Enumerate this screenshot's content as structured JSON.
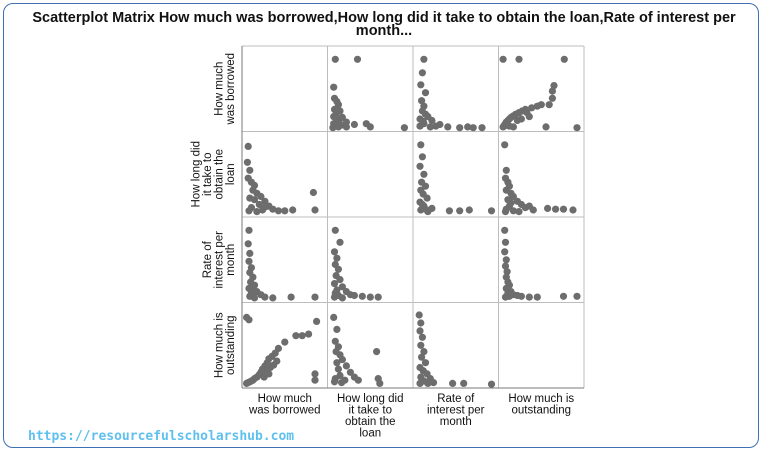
{
  "title": "Scatterplot Matrix How much was borrowed,How long did it take to obtain the loan,Rate of interest per month...",
  "watermark": "https://resourcefulscholarshub.com",
  "chart_data": {
    "type": "scatter-matrix",
    "title": "Scatterplot Matrix How much was borrowed,How long did it take to obtain the loan,Rate of interest per month...",
    "variables": [
      {
        "row_label": [
          "How much",
          "was borrowed"
        ],
        "col_label": [
          "How much",
          "was borrowed"
        ]
      },
      {
        "row_label": [
          "How long did",
          "it take to",
          "obtain the",
          "loan"
        ],
        "col_label": [
          "How long did",
          "it take to",
          "obtain the",
          "loan"
        ]
      },
      {
        "row_label": [
          "Rate of",
          "interest per",
          "month"
        ],
        "col_label": [
          "Rate of",
          "interest per",
          "month"
        ]
      },
      {
        "row_label": [
          "How much  is",
          "outstanding"
        ],
        "col_label": [
          "How much  is",
          "outstanding"
        ]
      }
    ],
    "axis_range": [
      0,
      1
    ],
    "point_color": "#6d6d6d",
    "grid": true,
    "panels": [
      {
        "row": 0,
        "col": 1,
        "points": [
          [
            0.06,
            0.87
          ],
          [
            0.34,
            0.87
          ],
          [
            0.04,
            0.52
          ],
          [
            0.05,
            0.38
          ],
          [
            0.08,
            0.34
          ],
          [
            0.1,
            0.3
          ],
          [
            0.05,
            0.24
          ],
          [
            0.12,
            0.22
          ],
          [
            0.07,
            0.18
          ],
          [
            0.15,
            0.14
          ],
          [
            0.09,
            0.1
          ],
          [
            0.2,
            0.08
          ],
          [
            0.04,
            0.06
          ],
          [
            0.3,
            0.05
          ],
          [
            0.45,
            0.06
          ],
          [
            0.05,
            0.03
          ],
          [
            0.1,
            0.02
          ],
          [
            0.2,
            0.02
          ],
          [
            0.03,
            0.01
          ],
          [
            0.5,
            0.02
          ],
          [
            0.93,
            0.01
          ],
          [
            0.07,
            0.13
          ],
          [
            0.13,
            0.04
          ],
          [
            0.04,
            0.15
          ],
          [
            0.11,
            0.07
          ]
        ]
      },
      {
        "row": 0,
        "col": 2,
        "points": [
          [
            0.1,
            0.87
          ],
          [
            0.08,
            0.7
          ],
          [
            0.06,
            0.55
          ],
          [
            0.12,
            0.45
          ],
          [
            0.07,
            0.35
          ],
          [
            0.1,
            0.28
          ],
          [
            0.08,
            0.22
          ],
          [
            0.15,
            0.15
          ],
          [
            0.05,
            0.12
          ],
          [
            0.2,
            0.1
          ],
          [
            0.1,
            0.06
          ],
          [
            0.3,
            0.05
          ],
          [
            0.05,
            0.03
          ],
          [
            0.18,
            0.02
          ],
          [
            0.4,
            0.02
          ],
          [
            0.55,
            0.01
          ],
          [
            0.65,
            0.02
          ],
          [
            0.72,
            0.01
          ],
          [
            0.83,
            0.01
          ],
          [
            0.12,
            0.18
          ],
          [
            0.25,
            0.03
          ],
          [
            0.09,
            0.09
          ]
        ]
      },
      {
        "row": 0,
        "col": 3,
        "points": [
          [
            0.02,
            0.87
          ],
          [
            0.22,
            0.87
          ],
          [
            0.79,
            0.87
          ],
          [
            0.66,
            0.54
          ],
          [
            0.64,
            0.47
          ],
          [
            0.64,
            0.38
          ],
          [
            0.6,
            0.3
          ],
          [
            0.5,
            0.3
          ],
          [
            0.45,
            0.28
          ],
          [
            0.38,
            0.26
          ],
          [
            0.3,
            0.24
          ],
          [
            0.26,
            0.22
          ],
          [
            0.22,
            0.2
          ],
          [
            0.18,
            0.18
          ],
          [
            0.15,
            0.16
          ],
          [
            0.12,
            0.14
          ],
          [
            0.1,
            0.12
          ],
          [
            0.08,
            0.1
          ],
          [
            0.06,
            0.08
          ],
          [
            0.05,
            0.06
          ],
          [
            0.04,
            0.05
          ],
          [
            0.03,
            0.03
          ],
          [
            0.02,
            0.02
          ],
          [
            0.07,
            0.04
          ],
          [
            0.1,
            0.03
          ],
          [
            0.15,
            0.02
          ],
          [
            0.2,
            0.1
          ],
          [
            0.25,
            0.12
          ],
          [
            0.32,
            0.2
          ],
          [
            0.35,
            0.15
          ],
          [
            0.56,
            0.02
          ],
          [
            0.95,
            0.01
          ]
        ]
      },
      {
        "row": 1,
        "col": 0,
        "points": [
          [
            0.04,
            0.85
          ],
          [
            0.03,
            0.65
          ],
          [
            0.06,
            0.55
          ],
          [
            0.04,
            0.45
          ],
          [
            0.08,
            0.4
          ],
          [
            0.12,
            0.36
          ],
          [
            0.1,
            0.3
          ],
          [
            0.15,
            0.26
          ],
          [
            0.2,
            0.22
          ],
          [
            0.06,
            0.2
          ],
          [
            0.25,
            0.16
          ],
          [
            0.18,
            0.12
          ],
          [
            0.3,
            0.1
          ],
          [
            0.08,
            0.08
          ],
          [
            0.35,
            0.06
          ],
          [
            0.22,
            0.05
          ],
          [
            0.05,
            0.04
          ],
          [
            0.42,
            0.04
          ],
          [
            0.5,
            0.04
          ],
          [
            0.6,
            0.05
          ],
          [
            0.86,
            0.27
          ],
          [
            0.88,
            0.05
          ],
          [
            0.12,
            0.18
          ],
          [
            0.26,
            0.09
          ],
          [
            0.15,
            0.03
          ]
        ]
      },
      {
        "row": 1,
        "col": 2,
        "points": [
          [
            0.06,
            0.87
          ],
          [
            0.08,
            0.72
          ],
          [
            0.05,
            0.6
          ],
          [
            0.1,
            0.5
          ],
          [
            0.07,
            0.4
          ],
          [
            0.12,
            0.35
          ],
          [
            0.06,
            0.3
          ],
          [
            0.09,
            0.25
          ],
          [
            0.14,
            0.2
          ],
          [
            0.05,
            0.15
          ],
          [
            0.1,
            0.1
          ],
          [
            0.2,
            0.07
          ],
          [
            0.06,
            0.05
          ],
          [
            0.15,
            0.03
          ],
          [
            0.42,
            0.04
          ],
          [
            0.55,
            0.04
          ],
          [
            0.67,
            0.05
          ],
          [
            0.95,
            0.04
          ],
          [
            0.08,
            0.12
          ],
          [
            0.12,
            0.06
          ]
        ]
      },
      {
        "row": 1,
        "col": 3,
        "points": [
          [
            0.04,
            0.87
          ],
          [
            0.06,
            0.55
          ],
          [
            0.05,
            0.45
          ],
          [
            0.08,
            0.4
          ],
          [
            0.1,
            0.35
          ],
          [
            0.06,
            0.3
          ],
          [
            0.12,
            0.26
          ],
          [
            0.15,
            0.22
          ],
          [
            0.08,
            0.18
          ],
          [
            0.2,
            0.16
          ],
          [
            0.25,
            0.12
          ],
          [
            0.1,
            0.1
          ],
          [
            0.3,
            0.08
          ],
          [
            0.06,
            0.06
          ],
          [
            0.4,
            0.05
          ],
          [
            0.15,
            0.04
          ],
          [
            0.05,
            0.03
          ],
          [
            0.22,
            0.03
          ],
          [
            0.58,
            0.07
          ],
          [
            0.68,
            0.06
          ],
          [
            0.78,
            0.06
          ],
          [
            0.9,
            0.05
          ],
          [
            0.35,
            0.1
          ],
          [
            0.12,
            0.14
          ]
        ]
      },
      {
        "row": 2,
        "col": 0,
        "points": [
          [
            0.05,
            0.87
          ],
          [
            0.04,
            0.7
          ],
          [
            0.06,
            0.58
          ],
          [
            0.05,
            0.48
          ],
          [
            0.08,
            0.4
          ],
          [
            0.06,
            0.34
          ],
          [
            0.1,
            0.28
          ],
          [
            0.07,
            0.22
          ],
          [
            0.12,
            0.18
          ],
          [
            0.05,
            0.14
          ],
          [
            0.15,
            0.1
          ],
          [
            0.08,
            0.08
          ],
          [
            0.2,
            0.06
          ],
          [
            0.06,
            0.04
          ],
          [
            0.25,
            0.03
          ],
          [
            0.12,
            0.02
          ],
          [
            0.35,
            0.02
          ],
          [
            0.58,
            0.03
          ],
          [
            0.88,
            0.03
          ],
          [
            0.1,
            0.12
          ]
        ]
      },
      {
        "row": 2,
        "col": 1,
        "points": [
          [
            0.06,
            0.87
          ],
          [
            0.12,
            0.72
          ],
          [
            0.05,
            0.6
          ],
          [
            0.08,
            0.52
          ],
          [
            0.06,
            0.44
          ],
          [
            0.1,
            0.38
          ],
          [
            0.07,
            0.3
          ],
          [
            0.12,
            0.25
          ],
          [
            0.05,
            0.2
          ],
          [
            0.15,
            0.16
          ],
          [
            0.08,
            0.12
          ],
          [
            0.2,
            0.1
          ],
          [
            0.06,
            0.08
          ],
          [
            0.25,
            0.06
          ],
          [
            0.1,
            0.05
          ],
          [
            0.3,
            0.05
          ],
          [
            0.4,
            0.04
          ],
          [
            0.5,
            0.03
          ],
          [
            0.6,
            0.03
          ],
          [
            0.05,
            0.03
          ],
          [
            0.15,
            0.02
          ]
        ]
      },
      {
        "row": 2,
        "col": 3,
        "points": [
          [
            0.04,
            0.87
          ],
          [
            0.05,
            0.72
          ],
          [
            0.04,
            0.6
          ],
          [
            0.06,
            0.5
          ],
          [
            0.05,
            0.42
          ],
          [
            0.07,
            0.35
          ],
          [
            0.06,
            0.28
          ],
          [
            0.08,
            0.22
          ],
          [
            0.1,
            0.18
          ],
          [
            0.06,
            0.14
          ],
          [
            0.12,
            0.1
          ],
          [
            0.08,
            0.08
          ],
          [
            0.15,
            0.06
          ],
          [
            0.2,
            0.05
          ],
          [
            0.1,
            0.04
          ],
          [
            0.25,
            0.04
          ],
          [
            0.35,
            0.03
          ],
          [
            0.45,
            0.03
          ],
          [
            0.78,
            0.04
          ],
          [
            0.95,
            0.04
          ],
          [
            0.05,
            0.03
          ]
        ]
      },
      {
        "row": 3,
        "col": 0,
        "points": [
          [
            0.02,
            0.85
          ],
          [
            0.05,
            0.82
          ],
          [
            0.9,
            0.8
          ],
          [
            0.64,
            0.62
          ],
          [
            0.72,
            0.62
          ],
          [
            0.8,
            0.64
          ],
          [
            0.5,
            0.54
          ],
          [
            0.42,
            0.46
          ],
          [
            0.38,
            0.4
          ],
          [
            0.34,
            0.36
          ],
          [
            0.3,
            0.33
          ],
          [
            0.28,
            0.28
          ],
          [
            0.25,
            0.24
          ],
          [
            0.22,
            0.2
          ],
          [
            0.2,
            0.16
          ],
          [
            0.18,
            0.13
          ],
          [
            0.15,
            0.1
          ],
          [
            0.12,
            0.08
          ],
          [
            0.1,
            0.06
          ],
          [
            0.08,
            0.05
          ],
          [
            0.06,
            0.04
          ],
          [
            0.04,
            0.03
          ],
          [
            0.02,
            0.02
          ],
          [
            0.24,
            0.1
          ],
          [
            0.3,
            0.14
          ],
          [
            0.26,
            0.18
          ],
          [
            0.36,
            0.25
          ],
          [
            0.32,
            0.22
          ],
          [
            0.4,
            0.3
          ],
          [
            0.88,
            0.14
          ],
          [
            0.88,
            0.06
          ]
        ]
      },
      {
        "row": 3,
        "col": 1,
        "points": [
          [
            0.04,
            0.85
          ],
          [
            0.08,
            0.7
          ],
          [
            0.06,
            0.55
          ],
          [
            0.1,
            0.48
          ],
          [
            0.07,
            0.42
          ],
          [
            0.12,
            0.38
          ],
          [
            0.15,
            0.32
          ],
          [
            0.08,
            0.28
          ],
          [
            0.2,
            0.24
          ],
          [
            0.1,
            0.2
          ],
          [
            0.25,
            0.16
          ],
          [
            0.12,
            0.12
          ],
          [
            0.3,
            0.1
          ],
          [
            0.06,
            0.08
          ],
          [
            0.18,
            0.06
          ],
          [
            0.05,
            0.04
          ],
          [
            0.14,
            0.03
          ],
          [
            0.58,
            0.42
          ],
          [
            0.6,
            0.08
          ],
          [
            0.62,
            0.02
          ],
          [
            0.35,
            0.06
          ]
        ]
      },
      {
        "row": 3,
        "col": 2,
        "points": [
          [
            0.04,
            0.88
          ],
          [
            0.06,
            0.78
          ],
          [
            0.05,
            0.68
          ],
          [
            0.08,
            0.6
          ],
          [
            0.06,
            0.5
          ],
          [
            0.1,
            0.42
          ],
          [
            0.07,
            0.35
          ],
          [
            0.12,
            0.28
          ],
          [
            0.05,
            0.22
          ],
          [
            0.09,
            0.18
          ],
          [
            0.14,
            0.14
          ],
          [
            0.06,
            0.1
          ],
          [
            0.18,
            0.08
          ],
          [
            0.1,
            0.05
          ],
          [
            0.22,
            0.03
          ],
          [
            0.05,
            0.02
          ],
          [
            0.15,
            0.02
          ],
          [
            0.46,
            0.02
          ],
          [
            0.6,
            0.02
          ],
          [
            0.95,
            0.01
          ]
        ]
      }
    ]
  }
}
